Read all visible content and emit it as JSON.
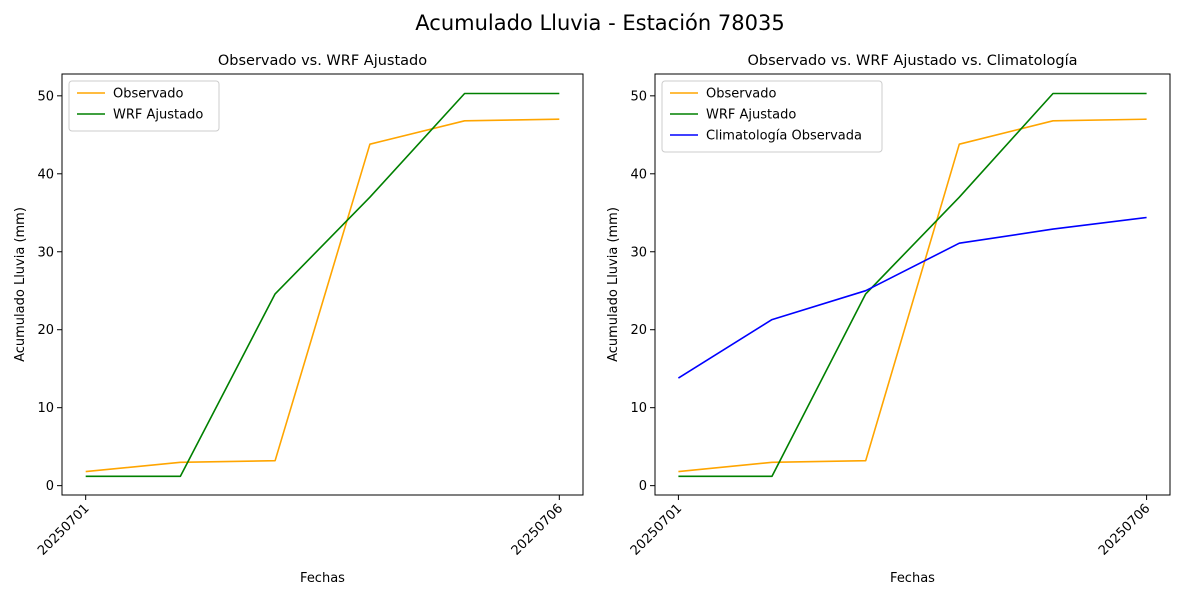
{
  "suptitle": "Acumulado Lluvia - Estación 78035",
  "colors": {
    "Observado": "#ffa500",
    "WRF Ajustado": "#008000",
    "Climatología Observada": "#0000ff"
  },
  "chart_data": [
    {
      "type": "line",
      "title": "Observado vs. WRF Ajustado",
      "xlabel": "Fechas",
      "ylabel": "Acumulado Lluvia (mm)",
      "x": [
        0,
        1,
        2,
        3,
        4,
        5
      ],
      "xticks": [
        {
          "x": 0,
          "label": "20250701"
        },
        {
          "x": 5,
          "label": "20250706"
        }
      ],
      "yticks": [
        0,
        10,
        20,
        30,
        40,
        50
      ],
      "ylim": [
        -1.2,
        52.8
      ],
      "xlim": [
        -0.25,
        5.25
      ],
      "legend": "upper-left",
      "series": [
        {
          "name": "Observado",
          "color": "#ffa500",
          "values": [
            1.8,
            3.0,
            3.2,
            43.8,
            46.8,
            47.0
          ]
        },
        {
          "name": "WRF Ajustado",
          "color": "#008000",
          "values": [
            1.2,
            1.2,
            24.6,
            37.0,
            50.3,
            50.3
          ]
        }
      ]
    },
    {
      "type": "line",
      "title": "Observado vs. WRF Ajustado vs. Climatología",
      "xlabel": "Fechas",
      "ylabel": "Acumulado Lluvia (mm)",
      "x": [
        0,
        1,
        2,
        3,
        4,
        5
      ],
      "xticks": [
        {
          "x": 0,
          "label": "20250701"
        },
        {
          "x": 5,
          "label": "20250706"
        }
      ],
      "yticks": [
        0,
        10,
        20,
        30,
        40,
        50
      ],
      "ylim": [
        -1.2,
        52.8
      ],
      "xlim": [
        -0.25,
        5.25
      ],
      "legend": "upper-left",
      "series": [
        {
          "name": "Observado",
          "color": "#ffa500",
          "values": [
            1.8,
            3.0,
            3.2,
            43.8,
            46.8,
            47.0
          ]
        },
        {
          "name": "WRF Ajustado",
          "color": "#008000",
          "values": [
            1.2,
            1.2,
            24.6,
            37.0,
            50.3,
            50.3
          ]
        },
        {
          "name": "Climatología Observada",
          "color": "#0000ff",
          "values": [
            13.8,
            21.3,
            25.0,
            31.1,
            32.9,
            34.4
          ]
        }
      ]
    }
  ]
}
